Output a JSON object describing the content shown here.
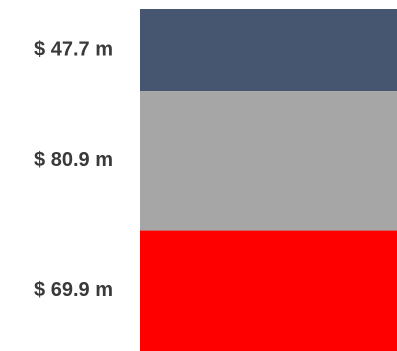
{
  "chart_data": {
    "type": "bar",
    "stacked": true,
    "unit_prefix": "$",
    "unit_suffix": "m",
    "segments": [
      {
        "value": 47.7,
        "label": "$ 47.7 m",
        "color": "#465670"
      },
      {
        "value": 80.9,
        "label": "$ 80.9 m",
        "color": "#a6a6a6"
      },
      {
        "value": 69.9,
        "label": "$ 69.9 m",
        "color": "#ff0000"
      }
    ]
  }
}
